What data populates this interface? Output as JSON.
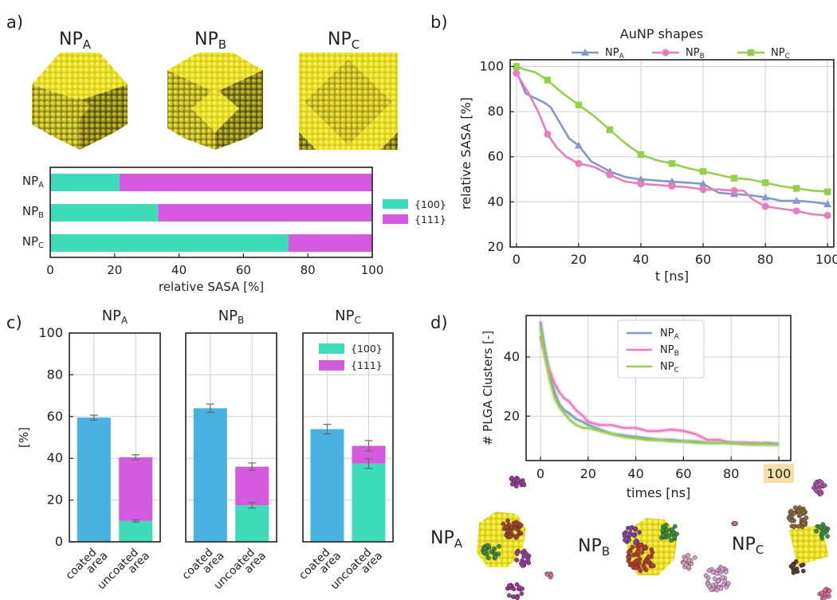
{
  "figure": {
    "panel_labels": [
      "a)",
      "b)",
      "c)",
      "d)"
    ],
    "np_base": "NP",
    "np_subs": [
      "A",
      "B",
      "C"
    ],
    "facets": [
      "{100}",
      "{111}"
    ],
    "colors": {
      "facet100": "#3fdcb9",
      "facet111": "#d45ae0",
      "coated": "#49b1df",
      "NPA": "#8297cb",
      "NPB": "#e67dbd",
      "NPC": "#95d04d",
      "gold": "#e8dc28",
      "highlight": "#f8dfa9"
    },
    "icons": [
      "gold-nanoparticle-icon",
      "polymer-cluster-icon"
    ]
  },
  "chart_data": [
    {
      "panel": "a",
      "type": "bar",
      "orientation": "horizontal",
      "stacked": true,
      "categories": [
        "NPA",
        "NPB",
        "NPC"
      ],
      "series": [
        {
          "name": "{100}",
          "values": [
            21.5,
            33.5,
            74
          ]
        },
        {
          "name": "{111}",
          "values": [
            78.5,
            66.5,
            26
          ]
        }
      ],
      "xlabel": "relative SASA [%]",
      "xlim": [
        0,
        100
      ],
      "xticks": [
        "0",
        "20",
        "40",
        "60",
        "80",
        "100"
      ],
      "grid": false,
      "legend": "right"
    },
    {
      "panel": "b",
      "type": "line",
      "legend_title": "AuNP shapes",
      "xlabel": "t [ns]",
      "ylabel": "relative SASA [%]",
      "xlim": [
        -2,
        102
      ],
      "ylim": [
        20,
        103
      ],
      "xticks": [
        "0",
        "20",
        "40",
        "60",
        "80",
        "100"
      ],
      "yticks": [
        "20",
        "40",
        "60",
        "80",
        "100"
      ],
      "grid": true,
      "legend": "top",
      "series": [
        {
          "name": "NPA",
          "marker": "triangle",
          "x": [
            0,
            3,
            6,
            9,
            11,
            14,
            17,
            20,
            24,
            28,
            30,
            35,
            40,
            45,
            50,
            55,
            60,
            65,
            70,
            75,
            80,
            85,
            90,
            95,
            100
          ],
          "y": [
            98,
            88,
            86,
            84,
            82,
            75,
            68,
            65,
            58,
            55,
            53.5,
            51,
            50,
            49.5,
            49,
            48.5,
            48,
            44,
            43.5,
            43,
            42,
            40.5,
            40.5,
            40,
            39
          ]
        },
        {
          "name": "NPB",
          "marker": "circle",
          "x": [
            0,
            4,
            7,
            10,
            13,
            16,
            20,
            25,
            30,
            35,
            40,
            45,
            50,
            55,
            60,
            65,
            70,
            73,
            76,
            80,
            85,
            90,
            95,
            100
          ],
          "y": [
            97,
            88,
            80,
            70,
            64,
            60,
            57,
            55.5,
            52,
            49,
            48,
            47.5,
            47,
            46.5,
            45.5,
            45.5,
            45,
            45,
            41,
            38,
            37,
            36,
            34.5,
            34
          ]
        },
        {
          "name": "NPC",
          "marker": "square",
          "x": [
            0,
            3,
            6,
            10,
            15,
            20,
            25,
            30,
            35,
            40,
            45,
            50,
            55,
            60,
            65,
            70,
            75,
            80,
            85,
            90,
            95,
            100
          ],
          "y": [
            100,
            98.5,
            97.5,
            94,
            88,
            83,
            78,
            72,
            66,
            61,
            58.5,
            57,
            55,
            53.5,
            52,
            50.5,
            50,
            48.5,
            47,
            46,
            45,
            44.5
          ]
        }
      ]
    },
    {
      "panel": "c",
      "type": "bar",
      "stacked": true,
      "ylabel": "[%]",
      "ylim": [
        0,
        100
      ],
      "yticks": [
        "0",
        "20",
        "40",
        "60",
        "80",
        "100"
      ],
      "category_labels": [
        [
          "coated",
          "area"
        ],
        [
          "uncoated",
          "area"
        ]
      ],
      "grid": true,
      "legend": "top-right",
      "subplots": [
        {
          "title": "NPA",
          "coated": 59.5,
          "coated_err": 1.2,
          "uncoated_100": 10,
          "uncoated_100_err": 0.5,
          "uncoated_111": 30.5,
          "uncoated_total_err": 1.2
        },
        {
          "title": "NPB",
          "coated": 64,
          "coated_err": 2.0,
          "uncoated_100": 17.5,
          "uncoated_100_err": 1.3,
          "uncoated_111": 18.5,
          "uncoated_total_err": 1.8
        },
        {
          "title": "NPC",
          "coated": 54,
          "coated_err": 2.3,
          "uncoated_100": 37.5,
          "uncoated_100_err": 2.3,
          "uncoated_111": 8.5,
          "uncoated_total_err": 2.5
        }
      ]
    },
    {
      "panel": "d",
      "type": "line",
      "xlabel": "times [ns]",
      "ylabel": "# PLGA Clusters [-]",
      "xlim": [
        -6,
        105
      ],
      "ylim": [
        5,
        54
      ],
      "xticks": [
        "0",
        "20",
        "40",
        "60",
        "80",
        "100"
      ],
      "yticks": [
        "20",
        "40"
      ],
      "highlighted_tick": "100",
      "grid": true,
      "legend": "top-center",
      "series": [
        {
          "name": "NPA",
          "x": [
            0,
            2,
            4,
            6,
            8,
            10,
            12,
            15,
            18,
            20,
            25,
            30,
            35,
            40,
            45,
            50,
            55,
            60,
            65,
            70,
            75,
            80,
            85,
            90,
            95,
            100
          ],
          "y": [
            52,
            42,
            34,
            28,
            24,
            22,
            21,
            19,
            18,
            17,
            15.5,
            14,
            13.5,
            13,
            12.5,
            12,
            12,
            11.5,
            11.5,
            11,
            11,
            11,
            11,
            10.5,
            11,
            10.5
          ]
        },
        {
          "name": "NPB",
          "x": [
            0,
            2,
            4,
            6,
            8,
            10,
            12,
            15,
            18,
            20,
            25,
            30,
            35,
            40,
            45,
            50,
            55,
            60,
            65,
            70,
            75,
            80,
            85,
            90,
            95,
            100
          ],
          "y": [
            47,
            40,
            35,
            31,
            28,
            26,
            25,
            22,
            20,
            18,
            17,
            17,
            16,
            16,
            15,
            15,
            15.5,
            15,
            14,
            12,
            12,
            11,
            11,
            11,
            10.5,
            10.5
          ]
        },
        {
          "name": "NPC",
          "x": [
            0,
            2,
            4,
            6,
            8,
            10,
            12,
            15,
            18,
            20,
            25,
            30,
            35,
            40,
            45,
            50,
            55,
            60,
            65,
            70,
            75,
            80,
            85,
            90,
            95,
            100
          ],
          "y": [
            50,
            40,
            32,
            26,
            23,
            21,
            19,
            17,
            16,
            16,
            15,
            14,
            13,
            12.5,
            12,
            12,
            11.5,
            11.5,
            11,
            11,
            11,
            11,
            10.5,
            10.5,
            10.5,
            10.5
          ]
        }
      ]
    }
  ]
}
